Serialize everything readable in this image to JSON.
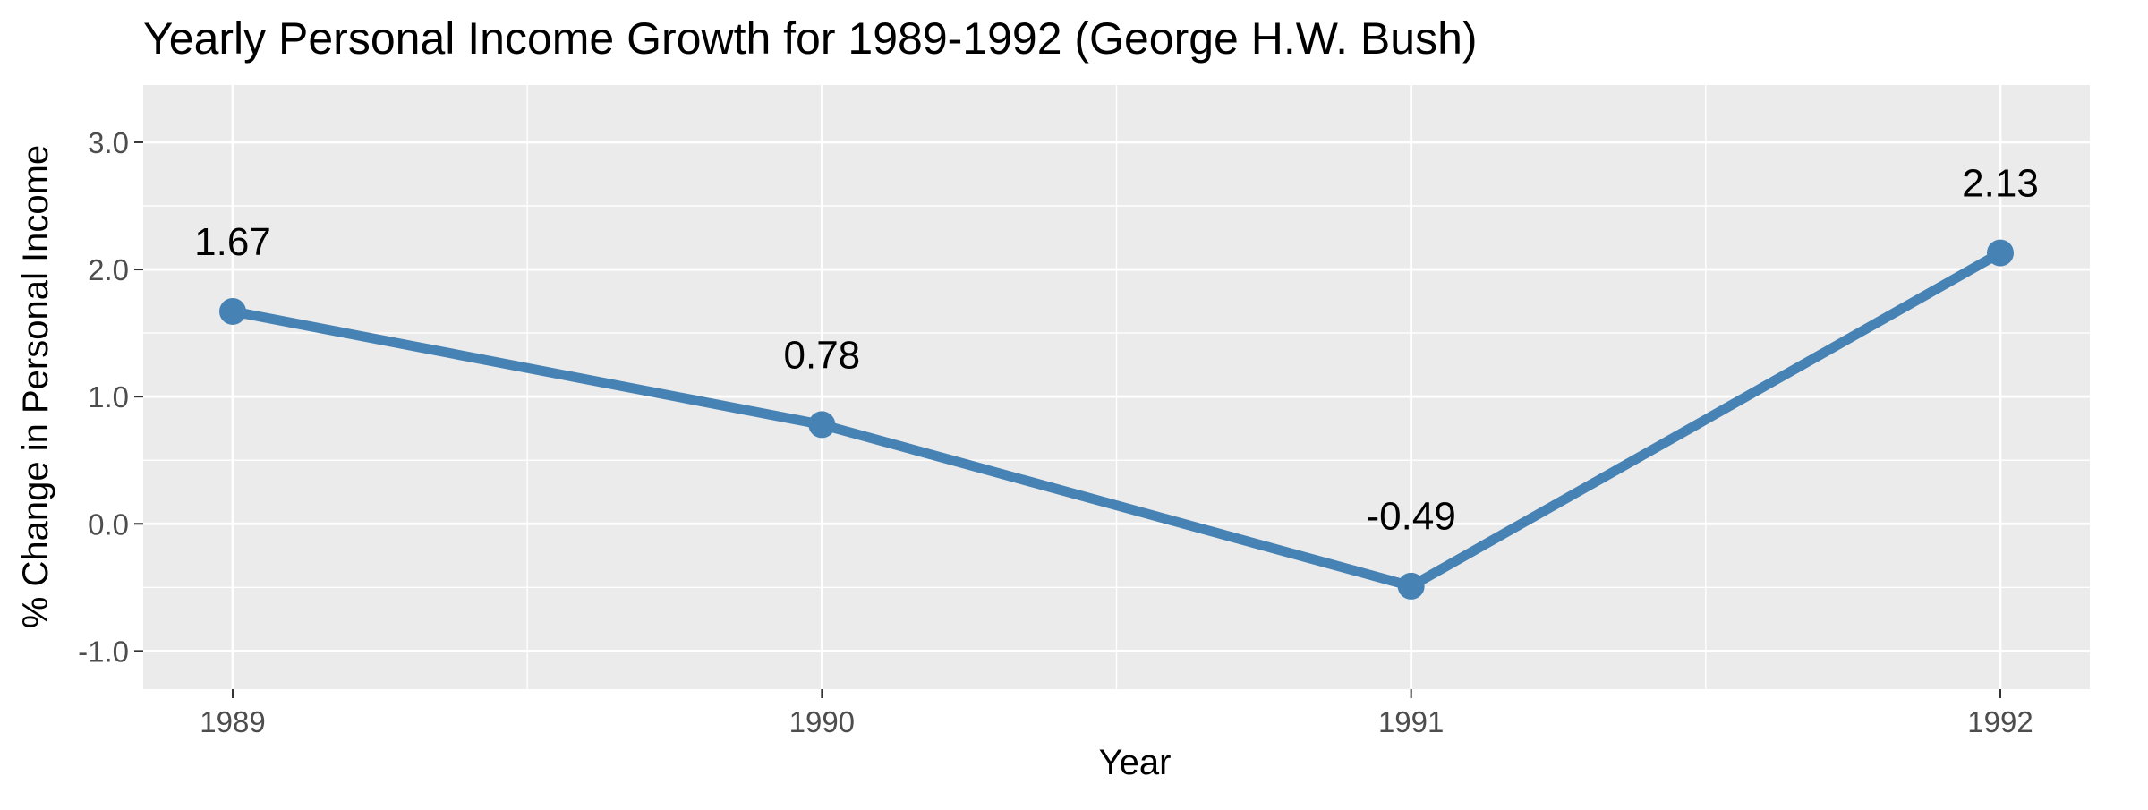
{
  "chart_data": {
    "type": "line",
    "title": "Yearly Personal Income Growth for 1989-1992 (George H.W. Bush)",
    "xlabel": "Year",
    "ylabel": "% Change in Personal Income",
    "categories": [
      "1989",
      "1990",
      "1991",
      "1992"
    ],
    "series": [
      {
        "values": [
          1.67,
          0.78,
          -0.49,
          2.13
        ]
      }
    ],
    "data_labels": [
      "1.67",
      "0.78",
      "-0.49",
      "2.13"
    ],
    "yticks": [
      -1.0,
      0.0,
      1.0,
      2.0,
      3.0
    ],
    "ytick_labels": [
      "-1.0",
      "0.0",
      "1.0",
      "2.0",
      "3.0"
    ],
    "ylim": [
      -1.3,
      3.45
    ],
    "grid": true,
    "colors": {
      "line": "#4682B4",
      "panel_background": "#EBEBEB",
      "grid": "#FFFFFF"
    }
  }
}
